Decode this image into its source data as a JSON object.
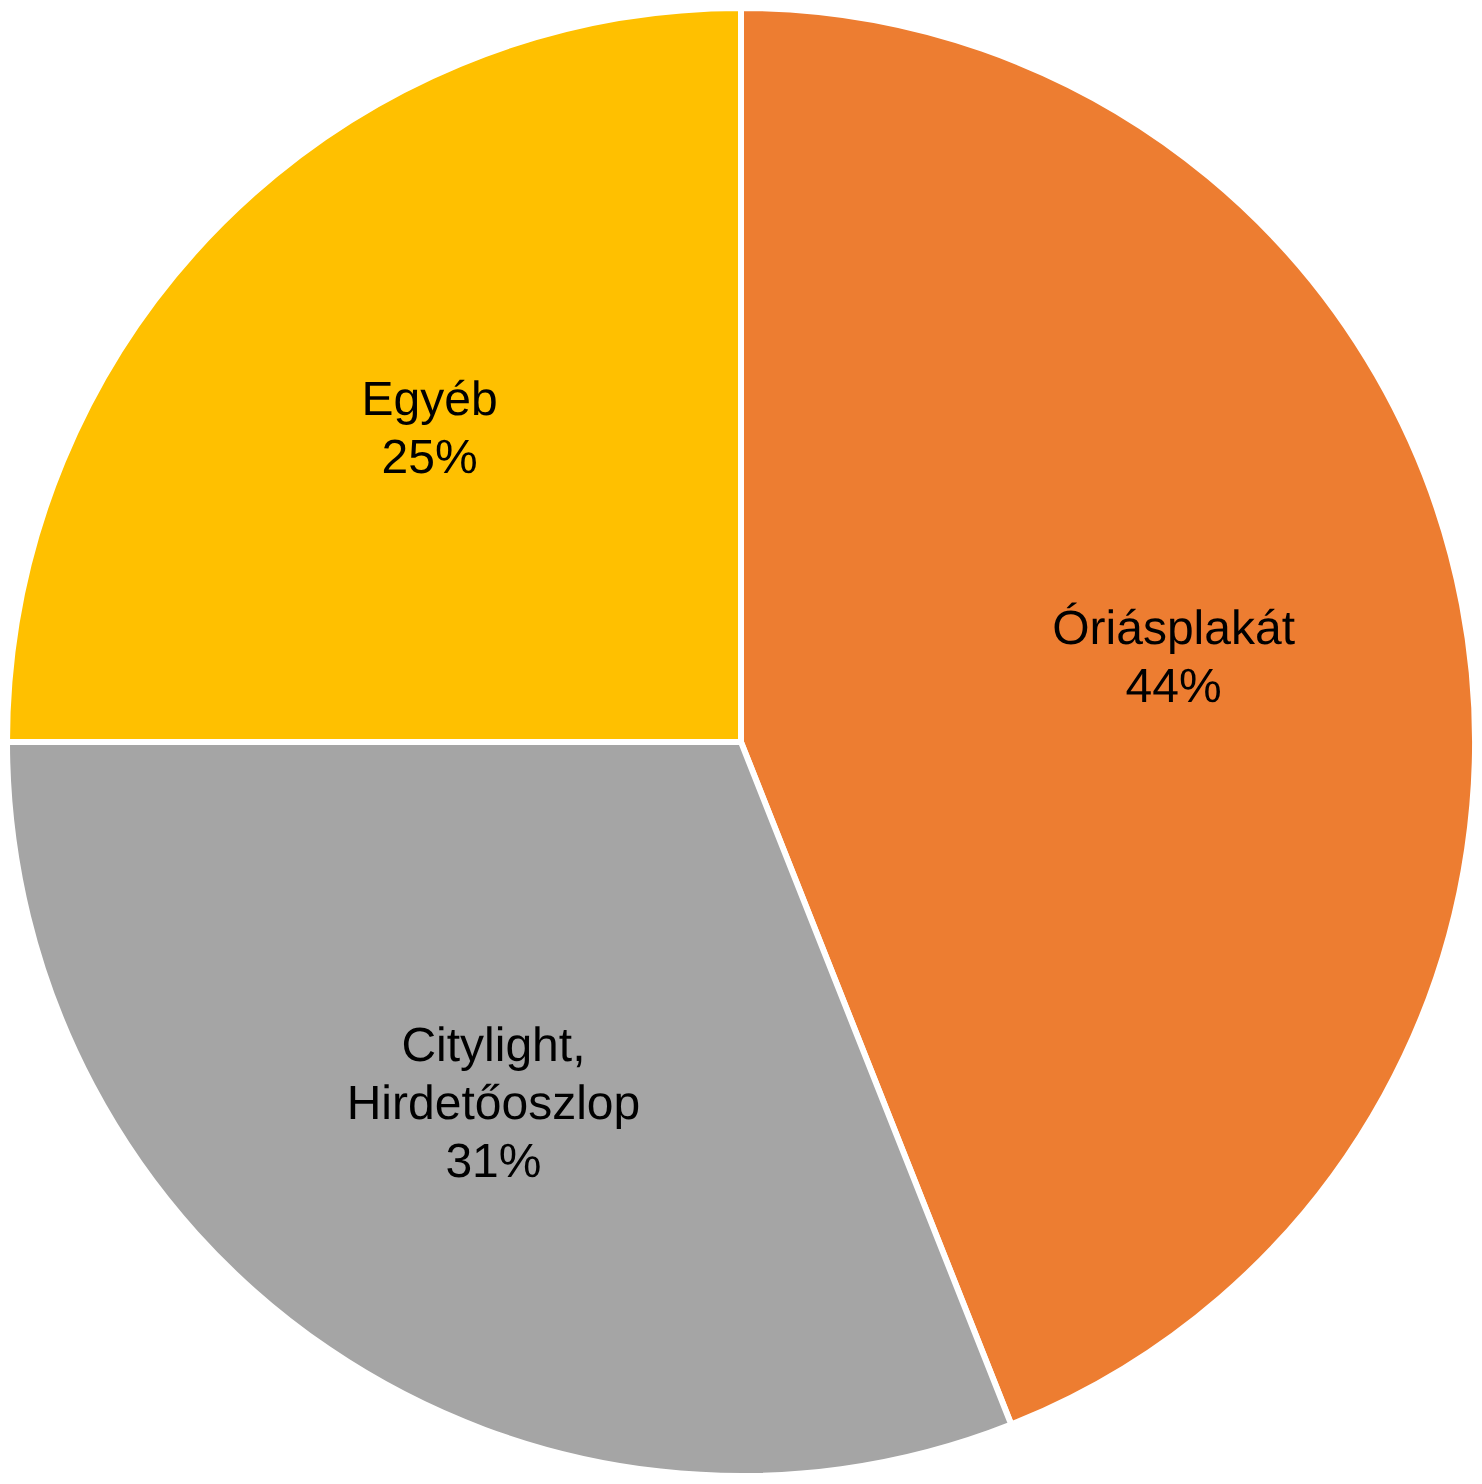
{
  "chart_data": {
    "type": "pie",
    "categories": [
      "Óriásplakát",
      "Citylight, Hirdetőoszlop",
      "Egyéb"
    ],
    "values": [
      44,
      31,
      25
    ],
    "colors": [
      "#ed7d31",
      "#a5a5a5",
      "#ffc000"
    ],
    "value_labels": [
      "44%",
      "31%",
      "25%"
    ],
    "legend": false
  }
}
